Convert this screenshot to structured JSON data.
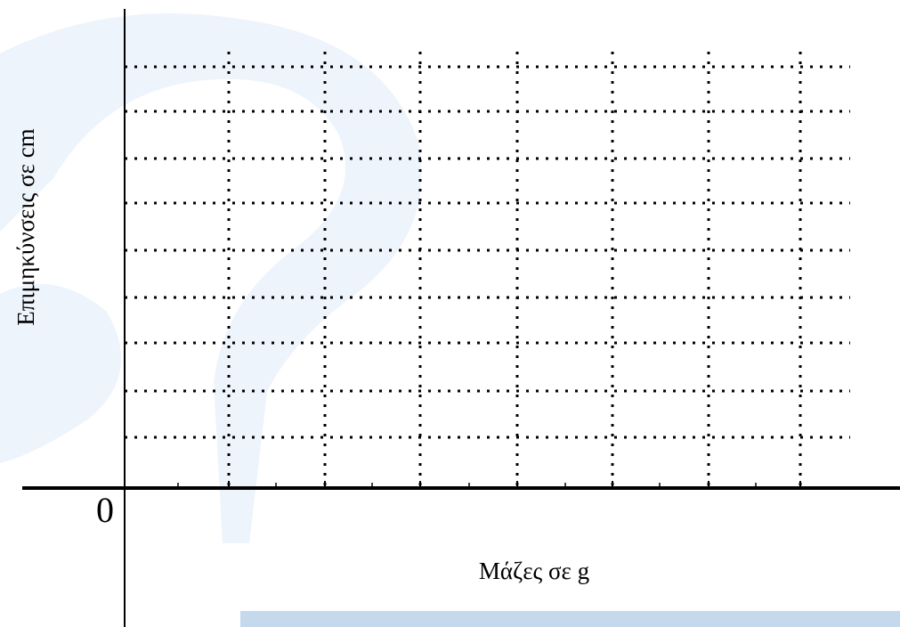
{
  "diagram": {
    "origin_label": "0",
    "x_axis_label": "Μάζες σε g",
    "y_axis_label": "Επιμηκύνσεις σε cm"
  }
}
